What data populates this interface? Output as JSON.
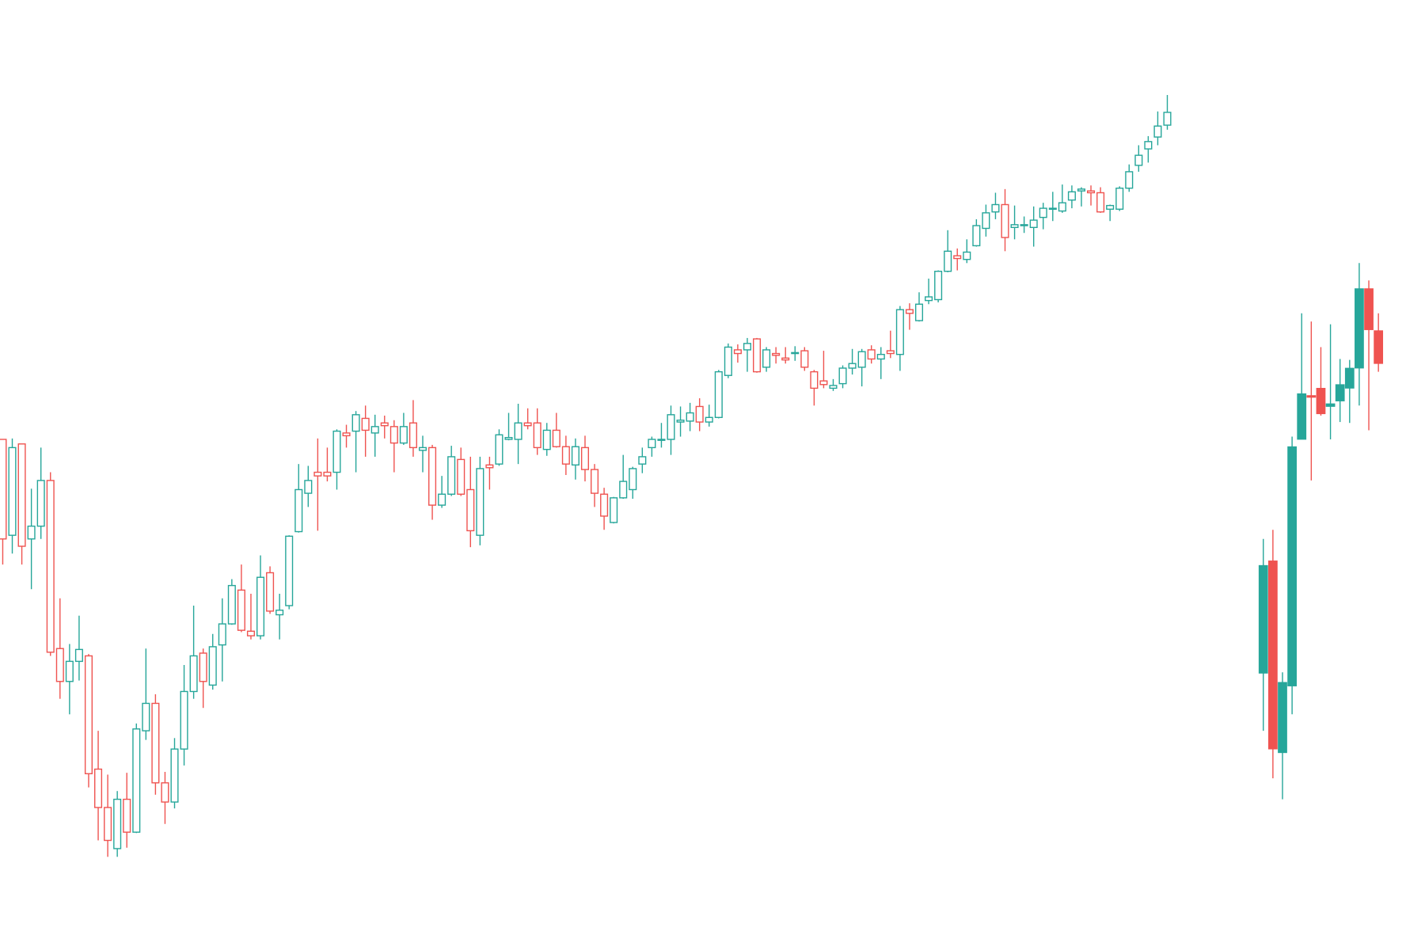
{
  "chart_data": [
    {
      "type": "candlestick",
      "style": "hollow",
      "up_color": "#26a69a",
      "down_color": "#ef5350",
      "ylim": [
        0,
        100
      ],
      "open": [
        51.9,
        41.4,
        51.4,
        41.0,
        42.4,
        47.4,
        29.0,
        25.4,
        27.6,
        28.2,
        15.8,
        11.6,
        7.1,
        12.5,
        8.9,
        20.0,
        23.0,
        14.3,
        12.2,
        18.0,
        24.3,
        28.5,
        25.0,
        29.4,
        31.7,
        35.4,
        30.9,
        30.4,
        37.3,
        32.7,
        33.7,
        41.8,
        46.0,
        48.3,
        48.3,
        48.3,
        52.6,
        52.8,
        54.2,
        52.6,
        53.7,
        53.3,
        51.5,
        53.7,
        50.7,
        51.0,
        44.7,
        45.9,
        49.7,
        46.4,
        41.4,
        49.1,
        49.2,
        51.9,
        51.9,
        53.7,
        53.7,
        50.8,
        52.9,
        51.1,
        49.1,
        51.0,
        48.6,
        45.9,
        42.8,
        45.5,
        46.4,
        49.2,
        51.0,
        51.8,
        51.9,
        53.8,
        53.9,
        55.5,
        53.8,
        54.3,
        58.9,
        61.7,
        61.7,
        62.9,
        59.8,
        61.3,
        60.8,
        61.3,
        61.6,
        59.3,
        58.3,
        57.5,
        58.0,
        59.7,
        59.8,
        61.7,
        60.7,
        61.6,
        61.2,
        66.1,
        64.9,
        67.1,
        67.2,
        70.3,
        72.0,
        71.6,
        73.1,
        75.0,
        76.8,
        77.6,
        75.1,
        75.3,
        75.1,
        76.2,
        77.1,
        76.9,
        78.1,
        79.1,
        79.1,
        78.9,
        77.1,
        77.1,
        79.4,
        81.9,
        83.7,
        85.0,
        86.3
      ],
      "high": [
        51.9,
        52.0,
        51.4,
        46.5,
        51.0,
        48.3,
        34.5,
        29.5,
        32.6,
        28.4,
        20.0,
        15.2,
        13.4,
        15.4,
        20.8,
        29.0,
        24.0,
        15.5,
        19.2,
        27.2,
        33.7,
        29.0,
        30.6,
        34.5,
        36.6,
        38.2,
        35.0,
        39.2,
        38.0,
        35.0,
        41.4,
        49.2,
        49.0,
        52.0,
        51.0,
        53.0,
        53.5,
        55.0,
        55.6,
        54.6,
        54.5,
        54.0,
        54.8,
        56.2,
        52.3,
        51.3,
        47.9,
        51.2,
        51.0,
        50.0,
        50.0,
        50.0,
        53.0,
        54.8,
        55.8,
        55.3,
        55.3,
        53.7,
        54.8,
        52.3,
        52.0,
        52.3,
        49.2,
        46.6,
        45.6,
        50.2,
        48.9,
        51.0,
        52.2,
        53.7,
        55.6,
        55.5,
        55.9,
        56.4,
        55.7,
        59.5,
        62.4,
        62.3,
        63.0,
        63.0,
        62.0,
        62.0,
        62.0,
        62.1,
        62.0,
        59.5,
        61.6,
        58.5,
        60.0,
        61.8,
        61.8,
        62.2,
        62.0,
        63.8,
        66.5,
        66.8,
        68.0,
        69.5,
        70.4,
        74.8,
        72.8,
        73.8,
        76.0,
        77.6,
        78.9,
        79.3,
        77.5,
        76.3,
        77.4,
        77.8,
        79.0,
        79.8,
        79.7,
        79.5,
        79.7,
        79.5,
        77.6,
        79.6,
        82.0,
        84.1,
        85.1,
        87.8,
        89.6
      ],
      "low": [
        38.2,
        39.4,
        38.2,
        35.5,
        41.0,
        28.2,
        23.5,
        21.8,
        25.5,
        13.8,
        8.0,
        6.2,
        6.2,
        7.2,
        8.8,
        19.0,
        13.0,
        9.8,
        11.5,
        16.2,
        23.5,
        22.5,
        24.5,
        25.4,
        31.6,
        30.8,
        30.0,
        30.0,
        32.8,
        30.0,
        33.3,
        41.7,
        44.5,
        41.9,
        47.3,
        46.4,
        51.0,
        48.3,
        50.0,
        50.0,
        52.0,
        48.3,
        51.3,
        50.0,
        48.3,
        43.1,
        44.4,
        45.7,
        45.7,
        40.1,
        40.3,
        46.4,
        49.0,
        51.8,
        49.2,
        53.0,
        50.2,
        50.1,
        51.0,
        48.0,
        47.5,
        47.3,
        44.5,
        42.0,
        42.7,
        45.4,
        45.4,
        48.2,
        50.0,
        51.0,
        50.2,
        52.2,
        52.8,
        52.8,
        53.3,
        54.2,
        58.6,
        60.3,
        59.3,
        59.2,
        59.3,
        60.2,
        60.2,
        60.5,
        59.4,
        55.6,
        57.5,
        57.2,
        57.5,
        59.0,
        57.7,
        60.2,
        58.5,
        60.8,
        59.4,
        63.9,
        64.8,
        66.7,
        66.9,
        70.2,
        70.4,
        71.2,
        73.0,
        74.1,
        76.0,
        72.5,
        73.8,
        74.5,
        73.0,
        74.9,
        75.8,
        76.7,
        77.2,
        77.4,
        77.5,
        76.7,
        75.8,
        76.9,
        79.0,
        81.2,
        82.2,
        84.1,
        85.8
      ],
      "close": [
        41.0,
        51.0,
        40.2,
        42.4,
        47.4,
        28.6,
        25.4,
        27.6,
        28.9,
        15.3,
        11.6,
        8.0,
        12.5,
        8.9,
        20.2,
        23.0,
        14.3,
        12.2,
        18.0,
        24.3,
        28.2,
        25.4,
        29.2,
        31.7,
        35.9,
        31.0,
        30.4,
        36.8,
        33.1,
        33.2,
        41.3,
        46.4,
        47.4,
        47.9,
        47.9,
        52.8,
        52.3,
        54.6,
        52.9,
        53.3,
        53.4,
        51.5,
        53.3,
        51.0,
        51.0,
        44.7,
        45.9,
        50.0,
        45.9,
        41.9,
        48.7,
        48.8,
        52.4,
        52.1,
        53.7,
        53.4,
        51.0,
        52.9,
        51.1,
        49.2,
        51.1,
        48.6,
        46.0,
        43.5,
        45.5,
        47.3,
        48.7,
        50.0,
        51.9,
        51.9,
        54.6,
        54.0,
        54.8,
        53.8,
        54.3,
        59.3,
        62.0,
        61.3,
        62.4,
        59.3,
        61.7,
        61.1,
        60.6,
        61.4,
        59.8,
        57.5,
        57.9,
        57.8,
        59.7,
        60.2,
        61.5,
        60.7,
        61.2,
        61.3,
        66.1,
        65.7,
        66.7,
        67.5,
        70.3,
        72.5,
        71.7,
        72.4,
        75.3,
        76.7,
        77.6,
        74.0,
        75.4,
        75.4,
        75.9,
        77.2,
        77.2,
        77.8,
        79.0,
        79.3,
        78.9,
        76.8,
        77.5,
        79.4,
        81.2,
        83.0,
        84.5,
        86.2,
        87.7
      ]
    },
    {
      "type": "candlestick",
      "style": "filled",
      "up_color": "#26a69a",
      "down_color": "#ef5350",
      "ylim": [
        0,
        100
      ],
      "open": [
        26.3,
        38.6,
        17.6,
        24.9,
        51.9,
        56.7,
        57.5,
        55.5,
        56.1,
        57.5,
        59.7,
        68.4,
        63.8
      ],
      "high": [
        41.0,
        42.0,
        26.4,
        52.2,
        65.7,
        64.8,
        62.0,
        64.5,
        60.7,
        60.6,
        71.2,
        69.3,
        65.7
      ],
      "low": [
        20.0,
        14.8,
        12.5,
        21.8,
        51.9,
        47.4,
        54.5,
        51.9,
        53.8,
        53.7,
        55.6,
        52.9,
        59.3
      ],
      "close": [
        38.1,
        18.0,
        25.3,
        51.1,
        56.9,
        56.5,
        54.7,
        55.8,
        57.9,
        59.7,
        68.4,
        63.9,
        60.2
      ]
    }
  ]
}
